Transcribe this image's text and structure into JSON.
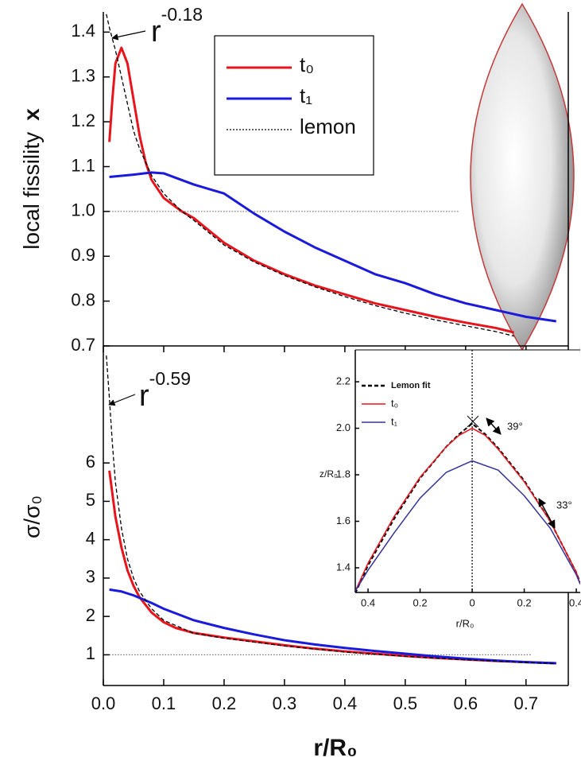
{
  "chart_data": [
    {
      "type": "line",
      "y_label": "local fissility",
      "y_label_variable": "x",
      "xlim": [
        0,
        0.77
      ],
      "ylim": [
        0.7,
        1.445
      ],
      "yticks": [
        0.7,
        0.8,
        0.9,
        {
          "value": 1.0,
          "label": "1.0"
        },
        1.1,
        1.2,
        1.3,
        1.4
      ],
      "annotation": {
        "text": "r",
        "superscript": "-0.18"
      },
      "reference_lines": [
        {
          "y": 1.0,
          "x": [
            0.01,
            0.59
          ]
        }
      ],
      "series": [
        {
          "name": "t₀",
          "color": "#e8141b",
          "line_style": "solid",
          "x": [
            0.01,
            0.015,
            0.02,
            0.03,
            0.04,
            0.05,
            0.06,
            0.07,
            0.08,
            0.1,
            0.13,
            0.15,
            0.2,
            0.25,
            0.3,
            0.35,
            0.4,
            0.45,
            0.5,
            0.55,
            0.6,
            0.65,
            0.68
          ],
          "values": [
            1.155,
            1.25,
            1.33,
            1.365,
            1.33,
            1.25,
            1.17,
            1.11,
            1.07,
            1.03,
            1.0,
            0.985,
            0.93,
            0.89,
            0.86,
            0.835,
            0.815,
            0.795,
            0.78,
            0.765,
            0.752,
            0.74,
            0.73
          ]
        },
        {
          "name": "t₁",
          "color": "#1a1adc",
          "line_style": "solid",
          "x": [
            0.01,
            0.05,
            0.08,
            0.1,
            0.13,
            0.15,
            0.2,
            0.25,
            0.3,
            0.35,
            0.4,
            0.45,
            0.5,
            0.55,
            0.6,
            0.65,
            0.7,
            0.75
          ],
          "values": [
            1.077,
            1.082,
            1.087,
            1.085,
            1.07,
            1.06,
            1.04,
            0.995,
            0.955,
            0.92,
            0.89,
            0.86,
            0.84,
            0.815,
            0.795,
            0.78,
            0.765,
            0.755
          ]
        },
        {
          "name": "lemon",
          "color": "#000000",
          "line_style": "dashed",
          "x": [
            0.005,
            0.01,
            0.02,
            0.03,
            0.04,
            0.05,
            0.06,
            0.08,
            0.1,
            0.13,
            0.15,
            0.2,
            0.25,
            0.3,
            0.35,
            0.4,
            0.45,
            0.5,
            0.55,
            0.6,
            0.65,
            0.68
          ],
          "values": [
            1.44,
            1.41,
            1.36,
            1.3,
            1.24,
            1.18,
            1.14,
            1.08,
            1.04,
            1.0,
            0.98,
            0.925,
            0.887,
            0.857,
            0.832,
            0.81,
            0.79,
            0.773,
            0.758,
            0.745,
            0.732,
            0.722
          ]
        }
      ]
    },
    {
      "type": "line",
      "y_label": "σ/σ₀",
      "x_label": "r/R₀",
      "xlim": [
        0,
        0.77
      ],
      "ylim": [
        0.2,
        9.05
      ],
      "xticks": [
        {
          "value": 0,
          "label": "0.0"
        },
        0.1,
        0.2,
        0.3,
        0.4,
        0.5,
        0.6,
        0.7
      ],
      "yticks": [
        1,
        2,
        3,
        4,
        5,
        6
      ],
      "annotation": {
        "text": "r",
        "superscript": "-0.59"
      },
      "reference_lines": [
        {
          "y": 1,
          "x": [
            0.01,
            0.71
          ]
        }
      ],
      "series": [
        {
          "name": "t₀",
          "color": "#e8141b",
          "line_style": "solid",
          "x": [
            0.01,
            0.015,
            0.02,
            0.03,
            0.04,
            0.05,
            0.06,
            0.08,
            0.1,
            0.12,
            0.15,
            0.2,
            0.25,
            0.3,
            0.35,
            0.4,
            0.45,
            0.5,
            0.55,
            0.6,
            0.65,
            0.7,
            0.75
          ],
          "values": [
            5.8,
            5.2,
            4.6,
            3.8,
            3.2,
            2.8,
            2.5,
            2.1,
            1.85,
            1.7,
            1.57,
            1.45,
            1.35,
            1.25,
            1.16,
            1.09,
            1.03,
            0.97,
            0.92,
            0.88,
            0.84,
            0.81,
            0.78
          ]
        },
        {
          "name": "t₁",
          "color": "#1a1adc",
          "line_style": "solid",
          "x": [
            0.01,
            0.03,
            0.05,
            0.08,
            0.1,
            0.15,
            0.2,
            0.25,
            0.3,
            0.35,
            0.4,
            0.45,
            0.5,
            0.55,
            0.6,
            0.65,
            0.7,
            0.75
          ],
          "values": [
            2.7,
            2.65,
            2.55,
            2.35,
            2.2,
            1.9,
            1.7,
            1.53,
            1.38,
            1.27,
            1.18,
            1.1,
            1.03,
            0.96,
            0.9,
            0.85,
            0.81,
            0.78
          ]
        },
        {
          "name": "lemon",
          "color": "#000000",
          "line_style": "dashed",
          "x": [
            0.005,
            0.01,
            0.015,
            0.02,
            0.03,
            0.04,
            0.05,
            0.06,
            0.08,
            0.1,
            0.15,
            0.2,
            0.3,
            0.4,
            0.5,
            0.6,
            0.7,
            0.75
          ],
          "values": [
            8.8,
            7.7,
            6.5,
            5.5,
            4.3,
            3.5,
            3.0,
            2.65,
            2.2,
            1.9,
            1.56,
            1.43,
            1.23,
            1.07,
            0.96,
            0.87,
            0.8,
            0.77
          ]
        }
      ]
    },
    {
      "type": "line",
      "x_label": "r/R₀",
      "y_label": "z/R₀",
      "xlim": [
        -0.449,
        0.415
      ],
      "ylim": [
        1.294,
        2.337
      ],
      "xticks": [
        {
          "value": -0.4,
          "label": "0.4"
        },
        {
          "value": -0.2,
          "label": "0.2"
        },
        0,
        0.2,
        0.4
      ],
      "yticks": [
        1.4,
        1.6,
        1.8,
        {
          "value": 2.0,
          "label": "2.0"
        },
        2.2
      ],
      "annotations": [
        "39°",
        "33°"
      ],
      "reference_lines": [
        {
          "x": 0
        }
      ],
      "series": [
        {
          "name": "Lemon fit",
          "color": "#000000",
          "line_style": "dashed",
          "x": [
            -0.449,
            -0.4,
            -0.3,
            -0.2,
            -0.1,
            -0.05,
            0,
            0.05,
            0.1,
            0.2,
            0.3,
            0.4,
            0.415
          ],
          "values": [
            1.29,
            1.41,
            1.61,
            1.785,
            1.92,
            1.975,
            2.02,
            1.975,
            1.915,
            1.775,
            1.6,
            1.38,
            1.335
          ]
        },
        {
          "name": "t₀",
          "color": "#e8141b",
          "line_style": "solid",
          "x": [
            -0.449,
            -0.4,
            -0.3,
            -0.2,
            -0.1,
            -0.05,
            0,
            0.05,
            0.1,
            0.2,
            0.3,
            0.4,
            0.415
          ],
          "values": [
            1.3,
            1.42,
            1.62,
            1.79,
            1.92,
            1.97,
            2.0,
            1.97,
            1.91,
            1.77,
            1.6,
            1.38,
            1.33
          ]
        },
        {
          "name": "t₁",
          "color": "#33339a",
          "line_style": "solid",
          "x": [
            -0.449,
            -0.4,
            -0.3,
            -0.2,
            -0.1,
            0,
            0.1,
            0.2,
            0.3,
            0.4,
            0.415
          ],
          "values": [
            1.3,
            1.39,
            1.55,
            1.7,
            1.81,
            1.86,
            1.82,
            1.71,
            1.57,
            1.37,
            1.33
          ]
        }
      ]
    }
  ]
}
